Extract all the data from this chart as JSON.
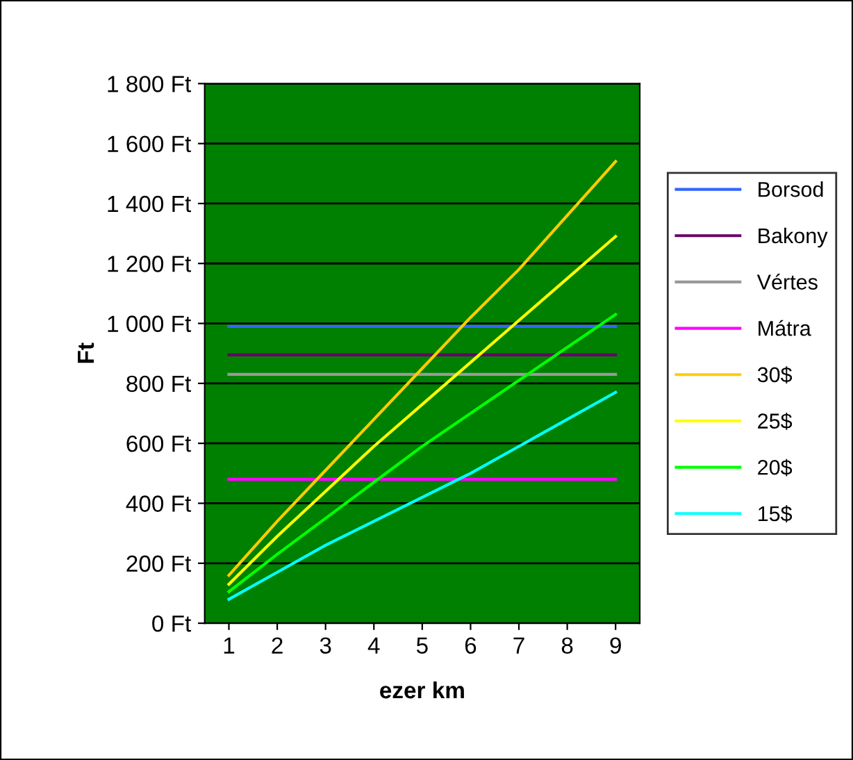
{
  "chart_data": {
    "type": "line",
    "xlabel": "ezer km",
    "ylabel": "Ft",
    "categories": [
      "1",
      "2",
      "3",
      "4",
      "5",
      "6",
      "7",
      "8",
      "9"
    ],
    "series": [
      {
        "name": "Borsod",
        "color": "#3366ff",
        "values": [
          990,
          990,
          990,
          990,
          990,
          990,
          990,
          990,
          990
        ]
      },
      {
        "name": "Bakony",
        "color": "#660066",
        "values": [
          895,
          895,
          895,
          895,
          895,
          895,
          895,
          895,
          895
        ]
      },
      {
        "name": "Vértes",
        "color": "#999999",
        "values": [
          830,
          830,
          830,
          830,
          830,
          830,
          830,
          830,
          830
        ]
      },
      {
        "name": "Mátra",
        "color": "#ff00ff",
        "values": [
          480,
          480,
          480,
          480,
          480,
          480,
          480,
          480,
          480
        ]
      },
      {
        "name": "30$",
        "color": "#ffcc00",
        "values": [
          160,
          340,
          510,
          680,
          850,
          1020,
          1180,
          1360,
          1540
        ]
      },
      {
        "name": "25$",
        "color": "#ffff00",
        "values": [
          130,
          290,
          440,
          590,
          730,
          870,
          1010,
          1150,
          1290
        ]
      },
      {
        "name": "20$",
        "color": "#00ff00",
        "values": [
          105,
          230,
          350,
          470,
          590,
          700,
          810,
          920,
          1030
        ]
      },
      {
        "name": "15$",
        "color": "#00ffff",
        "values": [
          80,
          170,
          260,
          340,
          420,
          500,
          590,
          680,
          770
        ]
      }
    ],
    "ylim": [
      0,
      1800
    ],
    "yticks": [
      {
        "value": 0,
        "label": "0 Ft"
      },
      {
        "value": 200,
        "label": "200 Ft"
      },
      {
        "value": 400,
        "label": "400 Ft"
      },
      {
        "value": 600,
        "label": "600 Ft"
      },
      {
        "value": 800,
        "label": "800 Ft"
      },
      {
        "value": 1000,
        "label": "1 000 Ft"
      },
      {
        "value": 1200,
        "label": "1 200 Ft"
      },
      {
        "value": 1400,
        "label": "1 400 Ft"
      },
      {
        "value": 1600,
        "label": "1 600 Ft"
      },
      {
        "value": 1800,
        "label": "1 800 Ft"
      }
    ],
    "grid": "y",
    "legend": "right",
    "marker": "none",
    "line_style": "solid"
  }
}
